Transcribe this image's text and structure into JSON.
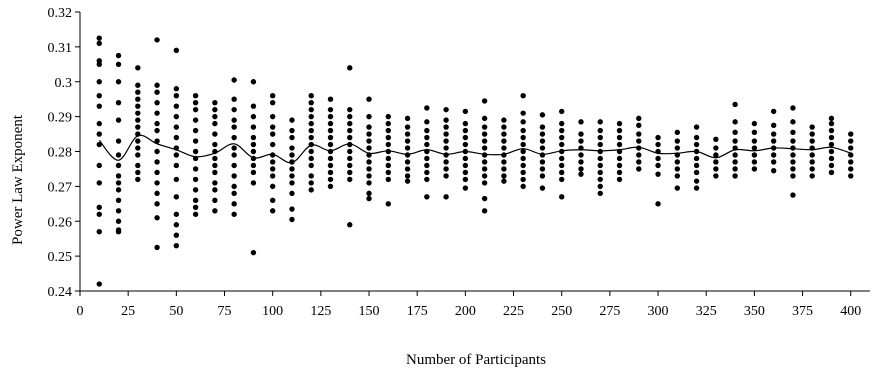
{
  "chart_data": {
    "type": "scatter",
    "title": "",
    "xlabel": "Number of Participants",
    "ylabel": "Power Law Exponent",
    "xlim": [
      0,
      410
    ],
    "ylim": [
      0.24,
      0.32
    ],
    "xticks": [
      "0",
      "25",
      "50",
      "75",
      "100",
      "125",
      "150",
      "175",
      "200",
      "225",
      "250",
      "275",
      "300",
      "325",
      "350",
      "375",
      "400"
    ],
    "yticks": [
      "0.24",
      "0.25",
      "0.26",
      "0.27",
      "0.28",
      "0.29",
      "0.3",
      "0.31",
      "0.32"
    ],
    "grid": false,
    "legend": "none",
    "colors": {
      "points": "#000000",
      "line": "#000000",
      "axis": "#000000"
    },
    "series": [
      {
        "type": "scatter",
        "x": [
          10,
          20,
          30,
          40,
          50,
          60,
          70,
          80,
          90,
          100,
          110,
          120,
          130,
          140,
          150,
          160,
          170,
          180,
          190,
          200,
          210,
          220,
          230,
          240,
          250,
          260,
          270,
          280,
          290,
          300,
          310,
          320,
          330,
          340,
          350,
          360,
          370,
          380,
          390,
          400
        ],
        "y_values": [
          [
            0.242,
            0.257,
            0.262,
            0.264,
            0.271,
            0.276,
            0.282,
            0.285,
            0.288,
            0.293,
            0.296,
            0.3,
            0.305,
            0.306,
            0.311,
            0.3125
          ],
          [
            0.257,
            0.2575,
            0.26,
            0.263,
            0.266,
            0.269,
            0.271,
            0.273,
            0.276,
            0.279,
            0.283,
            0.289,
            0.294,
            0.3,
            0.305,
            0.3075
          ],
          [
            0.272,
            0.274,
            0.276,
            0.279,
            0.281,
            0.283,
            0.285,
            0.287,
            0.289,
            0.291,
            0.293,
            0.295,
            0.297,
            0.299,
            0.304
          ],
          [
            0.2525,
            0.261,
            0.265,
            0.268,
            0.271,
            0.274,
            0.277,
            0.28,
            0.283,
            0.286,
            0.288,
            0.291,
            0.294,
            0.297,
            0.299,
            0.312
          ],
          [
            0.253,
            0.256,
            0.259,
            0.262,
            0.267,
            0.272,
            0.276,
            0.279,
            0.281,
            0.284,
            0.287,
            0.29,
            0.293,
            0.296,
            0.298,
            0.309
          ],
          [
            0.262,
            0.264,
            0.266,
            0.269,
            0.272,
            0.275,
            0.278,
            0.28,
            0.283,
            0.286,
            0.289,
            0.292,
            0.294,
            0.296
          ],
          [
            0.263,
            0.266,
            0.269,
            0.271,
            0.274,
            0.276,
            0.278,
            0.28,
            0.282,
            0.285,
            0.288,
            0.29,
            0.292,
            0.294
          ],
          [
            0.262,
            0.265,
            0.268,
            0.27,
            0.273,
            0.276,
            0.279,
            0.281,
            0.284,
            0.287,
            0.289,
            0.292,
            0.295,
            0.3005
          ],
          [
            0.251,
            0.271,
            0.274,
            0.276,
            0.278,
            0.28,
            0.282,
            0.284,
            0.287,
            0.29,
            0.293,
            0.3
          ],
          [
            0.263,
            0.266,
            0.27,
            0.273,
            0.275,
            0.277,
            0.279,
            0.282,
            0.285,
            0.287,
            0.29,
            0.294,
            0.296
          ],
          [
            0.2605,
            0.2635,
            0.268,
            0.271,
            0.273,
            0.275,
            0.277,
            0.279,
            0.281,
            0.284,
            0.286,
            0.289
          ],
          [
            0.269,
            0.271,
            0.273,
            0.276,
            0.278,
            0.28,
            0.282,
            0.284,
            0.286,
            0.288,
            0.29,
            0.292,
            0.294,
            0.296
          ],
          [
            0.27,
            0.272,
            0.274,
            0.276,
            0.278,
            0.28,
            0.282,
            0.284,
            0.286,
            0.288,
            0.29,
            0.292,
            0.295
          ],
          [
            0.259,
            0.272,
            0.274,
            0.276,
            0.278,
            0.28,
            0.282,
            0.284,
            0.286,
            0.288,
            0.29,
            0.292,
            0.304
          ],
          [
            0.2665,
            0.268,
            0.271,
            0.273,
            0.275,
            0.277,
            0.279,
            0.281,
            0.283,
            0.285,
            0.287,
            0.29,
            0.295
          ],
          [
            0.265,
            0.272,
            0.274,
            0.276,
            0.278,
            0.28,
            0.282,
            0.284,
            0.286,
            0.288,
            0.29
          ],
          [
            0.2715,
            0.273,
            0.275,
            0.277,
            0.279,
            0.281,
            0.283,
            0.285,
            0.287,
            0.2895
          ],
          [
            0.267,
            0.272,
            0.274,
            0.276,
            0.278,
            0.28,
            0.282,
            0.284,
            0.286,
            0.2885,
            0.2925
          ],
          [
            0.267,
            0.273,
            0.275,
            0.277,
            0.279,
            0.281,
            0.283,
            0.285,
            0.287,
            0.289,
            0.292
          ],
          [
            0.2695,
            0.272,
            0.274,
            0.276,
            0.278,
            0.28,
            0.282,
            0.284,
            0.286,
            0.288,
            0.2915
          ],
          [
            0.263,
            0.2665,
            0.271,
            0.273,
            0.275,
            0.277,
            0.279,
            0.281,
            0.283,
            0.285,
            0.287,
            0.2895,
            0.2945
          ],
          [
            0.2715,
            0.273,
            0.275,
            0.277,
            0.279,
            0.281,
            0.283,
            0.285,
            0.287,
            0.289
          ],
          [
            0.27,
            0.272,
            0.274,
            0.276,
            0.278,
            0.28,
            0.282,
            0.284,
            0.286,
            0.2885,
            0.291,
            0.296
          ],
          [
            0.2695,
            0.273,
            0.275,
            0.277,
            0.279,
            0.281,
            0.283,
            0.285,
            0.287,
            0.2905
          ],
          [
            0.267,
            0.272,
            0.274,
            0.276,
            0.278,
            0.28,
            0.282,
            0.284,
            0.286,
            0.288,
            0.2915
          ],
          [
            0.2735,
            0.275,
            0.277,
            0.279,
            0.281,
            0.283,
            0.285,
            0.2885
          ],
          [
            0.268,
            0.27,
            0.272,
            0.274,
            0.276,
            0.278,
            0.28,
            0.282,
            0.284,
            0.286,
            0.2885
          ],
          [
            0.272,
            0.274,
            0.276,
            0.278,
            0.28,
            0.282,
            0.284,
            0.286,
            0.288
          ],
          [
            0.275,
            0.277,
            0.279,
            0.281,
            0.283,
            0.285,
            0.2875,
            0.2895
          ],
          [
            0.265,
            0.2735,
            0.276,
            0.278,
            0.28,
            0.282,
            0.284
          ],
          [
            0.2695,
            0.273,
            0.275,
            0.277,
            0.279,
            0.281,
            0.283,
            0.2855
          ],
          [
            0.2695,
            0.2715,
            0.274,
            0.276,
            0.278,
            0.28,
            0.282,
            0.284,
            0.287
          ],
          [
            0.273,
            0.275,
            0.277,
            0.279,
            0.281,
            0.2835
          ],
          [
            0.273,
            0.275,
            0.277,
            0.279,
            0.281,
            0.283,
            0.2855,
            0.2885,
            0.2935
          ],
          [
            0.275,
            0.277,
            0.279,
            0.281,
            0.283,
            0.2855,
            0.288
          ],
          [
            0.2745,
            0.277,
            0.279,
            0.281,
            0.283,
            0.285,
            0.2875,
            0.2915
          ],
          [
            0.2675,
            0.273,
            0.275,
            0.277,
            0.279,
            0.281,
            0.283,
            0.2855,
            0.2885,
            0.2925
          ],
          [
            0.273,
            0.275,
            0.277,
            0.279,
            0.281,
            0.283,
            0.285,
            0.287
          ],
          [
            0.274,
            0.276,
            0.278,
            0.28,
            0.282,
            0.284,
            0.286,
            0.288,
            0.2895
          ],
          [
            0.273,
            0.275,
            0.277,
            0.279,
            0.281,
            0.283,
            0.285
          ]
        ]
      },
      {
        "type": "line",
        "x": [
          10,
          20,
          30,
          40,
          50,
          60,
          70,
          80,
          90,
          100,
          110,
          120,
          130,
          140,
          150,
          160,
          170,
          180,
          190,
          200,
          210,
          220,
          230,
          240,
          250,
          260,
          270,
          280,
          290,
          300,
          310,
          320,
          330,
          340,
          350,
          360,
          370,
          380,
          390,
          400
        ],
        "y": [
          0.2832,
          0.2775,
          0.2845,
          0.2822,
          0.2805,
          0.2785,
          0.2795,
          0.2822,
          0.2782,
          0.2792,
          0.2768,
          0.2818,
          0.2802,
          0.2822,
          0.2795,
          0.2802,
          0.2792,
          0.2805,
          0.2792,
          0.28,
          0.2792,
          0.2792,
          0.2808,
          0.2792,
          0.2802,
          0.2805,
          0.2802,
          0.2805,
          0.2812,
          0.2795,
          0.2795,
          0.28,
          0.2782,
          0.2805,
          0.2802,
          0.281,
          0.2808,
          0.2805,
          0.2812,
          0.2795
        ]
      }
    ]
  }
}
